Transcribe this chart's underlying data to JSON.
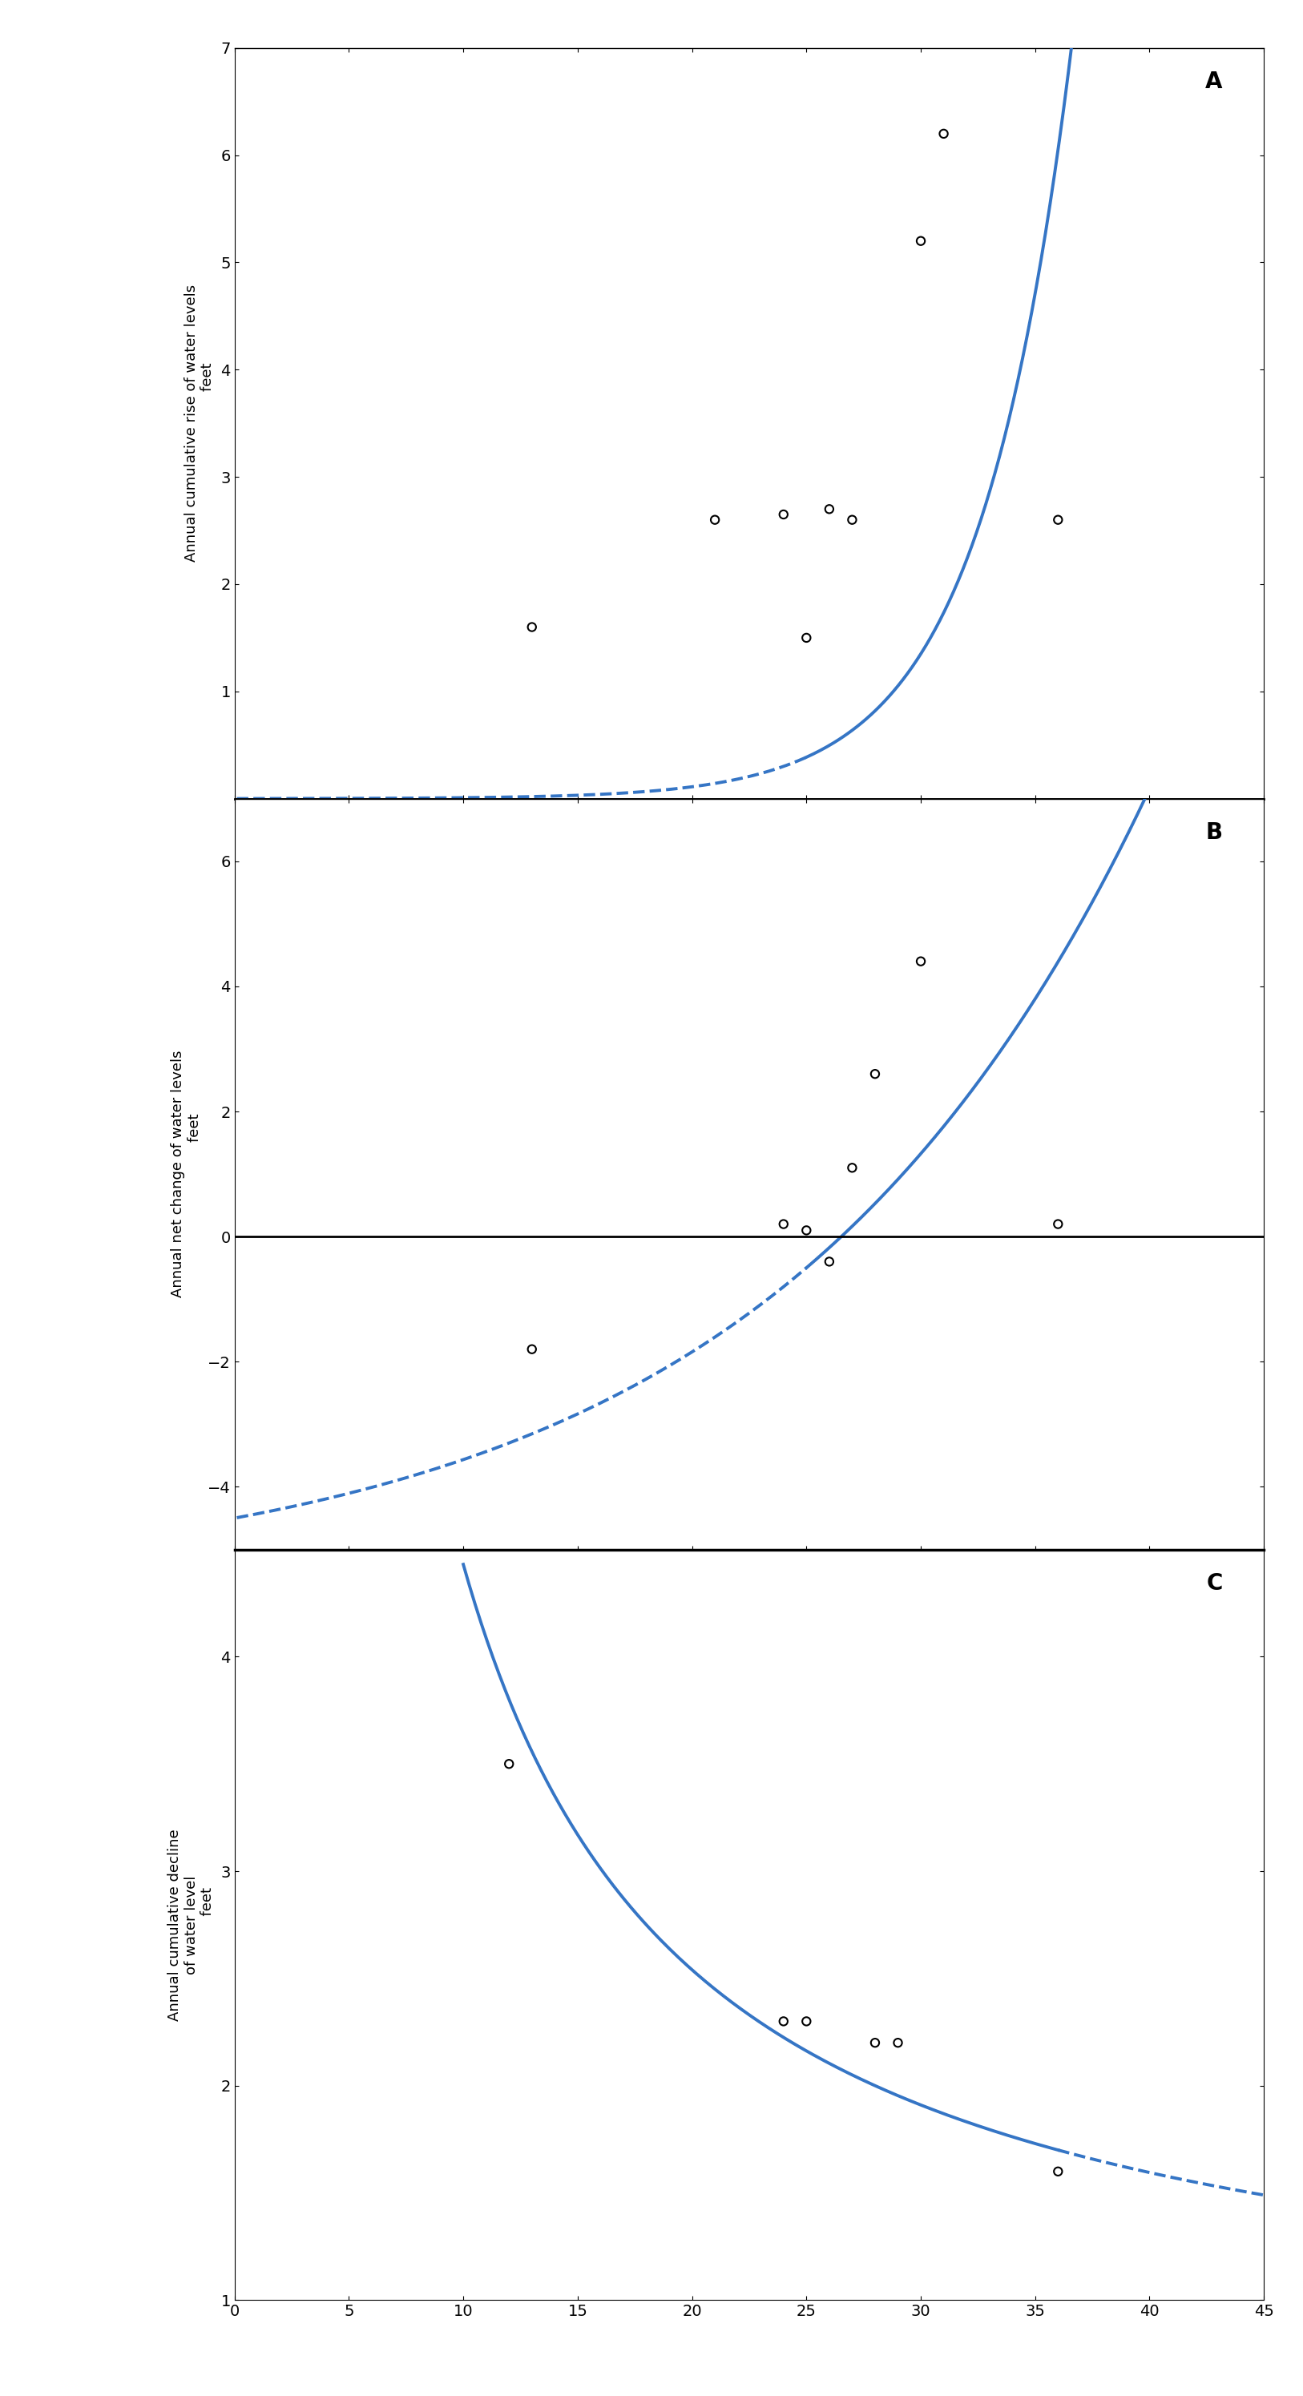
{
  "panel_A": {
    "ylabel_main": "Annual cumulative rise of water levels",
    "ylabel_sub": "feet",
    "ylim": [
      0,
      7
    ],
    "yticks": [
      1,
      2,
      3,
      4,
      5,
      6,
      7
    ],
    "label": "A",
    "scatter_x": [
      13,
      21,
      24,
      25,
      26,
      27,
      30,
      31,
      36
    ],
    "scatter_y": [
      1.6,
      2.6,
      2.65,
      1.5,
      2.7,
      2.6,
      5.2,
      6.2,
      2.6
    ],
    "curve_dashed_end": 25,
    "curve_solid_start": 25,
    "curve_exp_a": 0.00082,
    "curve_exp_b": 0.305,
    "curve_exp_c": 0.0
  },
  "panel_B": {
    "ylabel_main": "Annual net change of water levels",
    "ylabel_sub": "feet",
    "ylim": [
      -5,
      7
    ],
    "yticks": [
      -4,
      -2,
      0,
      2,
      4,
      6
    ],
    "label": "B",
    "scatter_x": [
      13,
      24,
      25,
      26,
      27,
      28,
      30,
      36
    ],
    "scatter_y": [
      -1.8,
      0.2,
      0.1,
      -0.4,
      1.1,
      2.6,
      4.4,
      0.2
    ],
    "curve_dashed_end": 25,
    "curve_solid_start": 25,
    "curve_exp_a": 0.00082,
    "curve_exp_b": 0.305,
    "curve_exp_c": -4.7
  },
  "panel_C": {
    "ylabel_main": "Annual cumulative decline",
    "ylabel_sub2": "of water level",
    "ylabel_sub": "feet",
    "ylim": [
      1,
      4.5
    ],
    "yticks": [
      1,
      2,
      3,
      4
    ],
    "label": "C",
    "scatter_x": [
      12,
      24,
      25,
      28,
      29,
      36
    ],
    "scatter_y": [
      3.5,
      2.3,
      2.3,
      2.2,
      2.2,
      1.6
    ],
    "curve_solid_end": 36,
    "curve_dashed_start": 36,
    "curve_A": 55.0,
    "curve_B": 0.55
  },
  "xlim": [
    0,
    45
  ],
  "xticks": [
    0,
    5,
    10,
    15,
    20,
    25,
    30,
    35,
    40,
    45
  ],
  "curve_color": "#3575c5",
  "line_width": 2.8,
  "marker_size": 55,
  "marker_lw": 1.5,
  "fontsize_label": 16,
  "fontsize_tick": 14,
  "fontsize_ylabel": 13,
  "fontsize_panel": 20
}
